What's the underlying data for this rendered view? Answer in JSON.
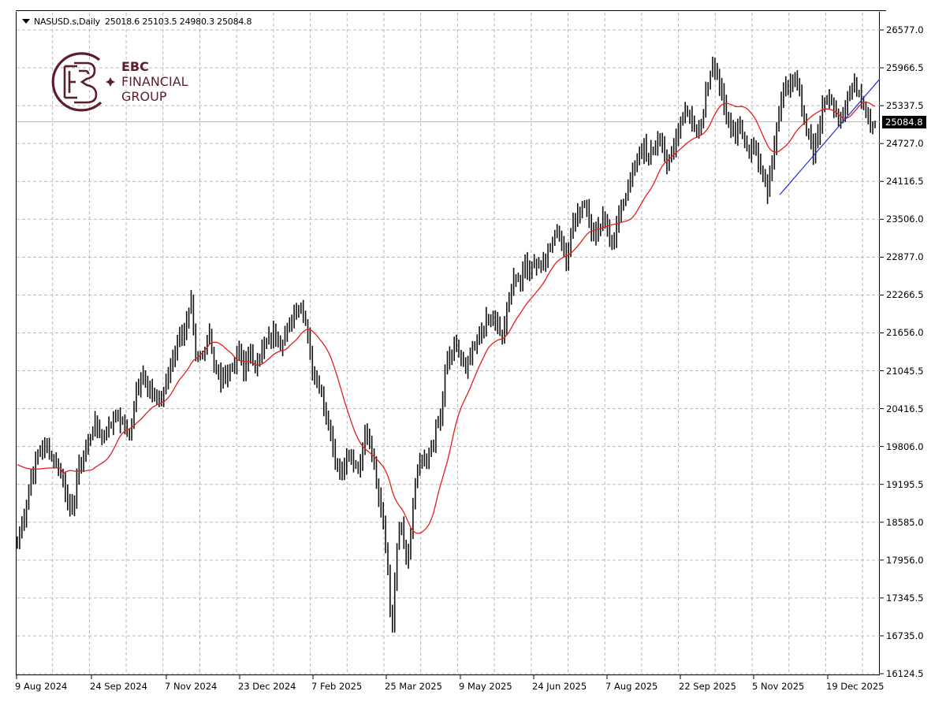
{
  "header": {
    "symbol": "NASUSD.s,Daily",
    "open": "25018.6",
    "high": "25103.5",
    "low": "24980.3",
    "close": "25084.8"
  },
  "logo": {
    "line1": "EBC",
    "line2": "FINANCIAL",
    "line3": "GROUP",
    "color": "#5a1f2b"
  },
  "current_price_label": "25084.8",
  "colors": {
    "bars": "#000000",
    "moving_average": "#e0201f",
    "trendline": "#1f2fd6",
    "grid": "#a0a0a0",
    "current_price_line": "#b0b0b0"
  },
  "chart_data": {
    "type": "ohlc-bar",
    "title": "NASUSD.s,Daily",
    "last_bar": {
      "open": 25018.6,
      "high": 25103.5,
      "low": 24980.3,
      "close": 25084.8
    },
    "ylim": [
      16124.5,
      26577.0
    ],
    "y_ticks": [
      "26577.0",
      "25966.5",
      "25337.5",
      "24727.0",
      "24116.5",
      "23506.0",
      "22877.0",
      "22266.5",
      "21656.0",
      "21045.5",
      "20416.5",
      "19806.0",
      "19195.5",
      "18585.0",
      "17956.0",
      "17345.5",
      "16735.0",
      "16124.5"
    ],
    "x_ticks": [
      "9 Aug 2024",
      "24 Sep 2024",
      "7 Nov 2024",
      "23 Dec 2024",
      "7 Feb 2025",
      "25 Mar 2025",
      "9 May 2025",
      "24 Jun 2025",
      "7 Aug 2025",
      "22 Sep 2025",
      "5 Nov 2025",
      "19 Dec 2025"
    ],
    "grid": true,
    "overlays": [
      {
        "name": "Moving Average",
        "type": "line",
        "color": "#e0201f"
      },
      {
        "name": "Trendline",
        "type": "line",
        "color": "#1f2fd6",
        "from": {
          "date": "~19 Nov 2025",
          "price": 23900
        },
        "to": {
          "date": "last bar",
          "price": 25780
        }
      }
    ],
    "key_points": [
      {
        "date": "9 Aug 2024",
        "price": 18500
      },
      {
        "date": "~early Sep 2024",
        "price": 19850
      },
      {
        "date": "~mid Sep 2024",
        "price": 18800
      },
      {
        "date": "~late Nov 2024",
        "price": 22150
      },
      {
        "date": "~mid Dec 2024",
        "price": 22250
      },
      {
        "date": "~early Jan 2025",
        "price": 21000
      },
      {
        "date": "~mid Feb 2025",
        "price": 22200
      },
      {
        "date": "~mid Mar 2025",
        "price": 19300
      },
      {
        "date": "~25 Mar 2025",
        "price": 20300
      },
      {
        "date": "~7 Apr 2025",
        "price": 16700
      },
      {
        "date": "~9 May 2025",
        "price": 21000
      },
      {
        "date": "~24 Jun 2025",
        "price": 22300
      },
      {
        "date": "~7 Aug 2025",
        "price": 23900
      },
      {
        "date": "~22 Sep 2025",
        "price": 24800
      },
      {
        "date": "~29 Oct 2025",
        "price": 26250
      },
      {
        "date": "~19 Nov 2025",
        "price": 23900
      },
      {
        "date": "~10 Dec 2025",
        "price": 25800
      },
      {
        "date": "last",
        "price": 25084.8
      }
    ],
    "anchors": [
      [
        0,
        18300
      ],
      [
        3,
        18700
      ],
      [
        6,
        19300
      ],
      [
        9,
        19700
      ],
      [
        12,
        19850
      ],
      [
        15,
        19650
      ],
      [
        18,
        19500
      ],
      [
        20,
        19300
      ],
      [
        22,
        18900
      ],
      [
        24,
        18700
      ],
      [
        26,
        19300
      ],
      [
        28,
        19600
      ],
      [
        31,
        19900
      ],
      [
        34,
        20200
      ],
      [
        37,
        20000
      ],
      [
        40,
        20100
      ],
      [
        43,
        20350
      ],
      [
        46,
        20200
      ],
      [
        49,
        20000
      ],
      [
        52,
        20700
      ],
      [
        55,
        21000
      ],
      [
        58,
        20750
      ],
      [
        61,
        20500
      ],
      [
        64,
        20700
      ],
      [
        67,
        21100
      ],
      [
        70,
        21550
      ],
      [
        73,
        21700
      ],
      [
        76,
        22100
      ],
      [
        78,
        21200
      ],
      [
        81,
        21300
      ],
      [
        84,
        21700
      ],
      [
        86,
        21150
      ],
      [
        89,
        20900
      ],
      [
        92,
        21000
      ],
      [
        95,
        21200
      ],
      [
        97,
        21400
      ],
      [
        99,
        21000
      ],
      [
        101,
        21400
      ],
      [
        103,
        21100
      ],
      [
        106,
        21300
      ],
      [
        109,
        21500
      ],
      [
        112,
        21650
      ],
      [
        115,
        21500
      ],
      [
        118,
        21700
      ],
      [
        121,
        22000
      ],
      [
        124,
        22100
      ],
      [
        127,
        21700
      ],
      [
        129,
        21000
      ],
      [
        132,
        20800
      ],
      [
        134,
        20500
      ],
      [
        136,
        20200
      ],
      [
        138,
        19800
      ],
      [
        140,
        19500
      ],
      [
        142,
        19400
      ],
      [
        144,
        19650
      ],
      [
        147,
        19550
      ],
      [
        150,
        19500
      ],
      [
        152,
        20100
      ],
      [
        154,
        19900
      ],
      [
        156,
        19500
      ],
      [
        158,
        19000
      ],
      [
        160,
        18500
      ],
      [
        162,
        17800
      ],
      [
        163,
        17200
      ],
      [
        164,
        16900
      ],
      [
        165,
        17600
      ],
      [
        166,
        18200
      ],
      [
        168,
        18500
      ],
      [
        170,
        17900
      ],
      [
        171,
        18000
      ],
      [
        173,
        18900
      ],
      [
        175,
        19400
      ],
      [
        177,
        19600
      ],
      [
        179,
        19500
      ],
      [
        181,
        19800
      ],
      [
        183,
        20100
      ],
      [
        185,
        20300
      ],
      [
        187,
        21000
      ],
      [
        189,
        21300
      ],
      [
        191,
        21400
      ],
      [
        193,
        21400
      ],
      [
        195,
        21200
      ],
      [
        196,
        21000
      ],
      [
        198,
        21300
      ],
      [
        200,
        21500
      ],
      [
        202,
        21650
      ],
      [
        204,
        21800
      ],
      [
        206,
        21900
      ],
      [
        208,
        21900
      ],
      [
        210,
        21800
      ],
      [
        212,
        21600
      ],
      [
        214,
        22000
      ],
      [
        216,
        22400
      ],
      [
        218,
        22600
      ],
      [
        220,
        22500
      ],
      [
        222,
        22800
      ],
      [
        224,
        22700
      ],
      [
        226,
        22800
      ],
      [
        228,
        22750
      ],
      [
        230,
        22900
      ],
      [
        232,
        23000
      ],
      [
        234,
        23150
      ],
      [
        236,
        23300
      ],
      [
        238,
        23100
      ],
      [
        240,
        22900
      ],
      [
        242,
        23250
      ],
      [
        244,
        23500
      ],
      [
        246,
        23700
      ],
      [
        248,
        23800
      ],
      [
        250,
        23500
      ],
      [
        252,
        23200
      ],
      [
        254,
        23300
      ],
      [
        256,
        23500
      ],
      [
        258,
        23350
      ],
      [
        260,
        23100
      ],
      [
        262,
        23400
      ],
      [
        264,
        23700
      ],
      [
        266,
        23900
      ],
      [
        268,
        24150
      ],
      [
        270,
        24400
      ],
      [
        272,
        24500
      ],
      [
        274,
        24700
      ],
      [
        276,
        24500
      ],
      [
        278,
        24600
      ],
      [
        280,
        24800
      ],
      [
        282,
        24700
      ],
      [
        284,
        24400
      ],
      [
        286,
        24500
      ],
      [
        288,
        24800
      ],
      [
        290,
        25100
      ],
      [
        292,
        25300
      ],
      [
        294,
        25150
      ],
      [
        296,
        24900
      ],
      [
        298,
        24900
      ],
      [
        300,
        25300
      ],
      [
        302,
        25700
      ],
      [
        304,
        26100
      ],
      [
        306,
        25900
      ],
      [
        308,
        25500
      ],
      [
        310,
        25100
      ],
      [
        312,
        25000
      ],
      [
        314,
        24900
      ],
      [
        316,
        25100
      ],
      [
        318,
        24700
      ],
      [
        320,
        24600
      ],
      [
        322,
        24700
      ],
      [
        324,
        24500
      ],
      [
        326,
        24200
      ],
      [
        328,
        24000
      ],
      [
        330,
        24500
      ],
      [
        332,
        25000
      ],
      [
        334,
        25400
      ],
      [
        336,
        25600
      ],
      [
        338,
        25800
      ],
      [
        340,
        25700
      ],
      [
        342,
        25500
      ],
      [
        344,
        25100
      ],
      [
        346,
        24900
      ],
      [
        348,
        24600
      ],
      [
        350,
        24900
      ],
      [
        352,
        25300
      ],
      [
        354,
        25500
      ],
      [
        356,
        25400
      ],
      [
        358,
        25300
      ],
      [
        360,
        25150
      ],
      [
        362,
        25400
      ],
      [
        364,
        25600
      ],
      [
        366,
        25700
      ],
      [
        368,
        25550
      ],
      [
        370,
        25400
      ],
      [
        372,
        25200
      ],
      [
        374,
        25000
      ],
      [
        375,
        25084.8
      ]
    ]
  }
}
